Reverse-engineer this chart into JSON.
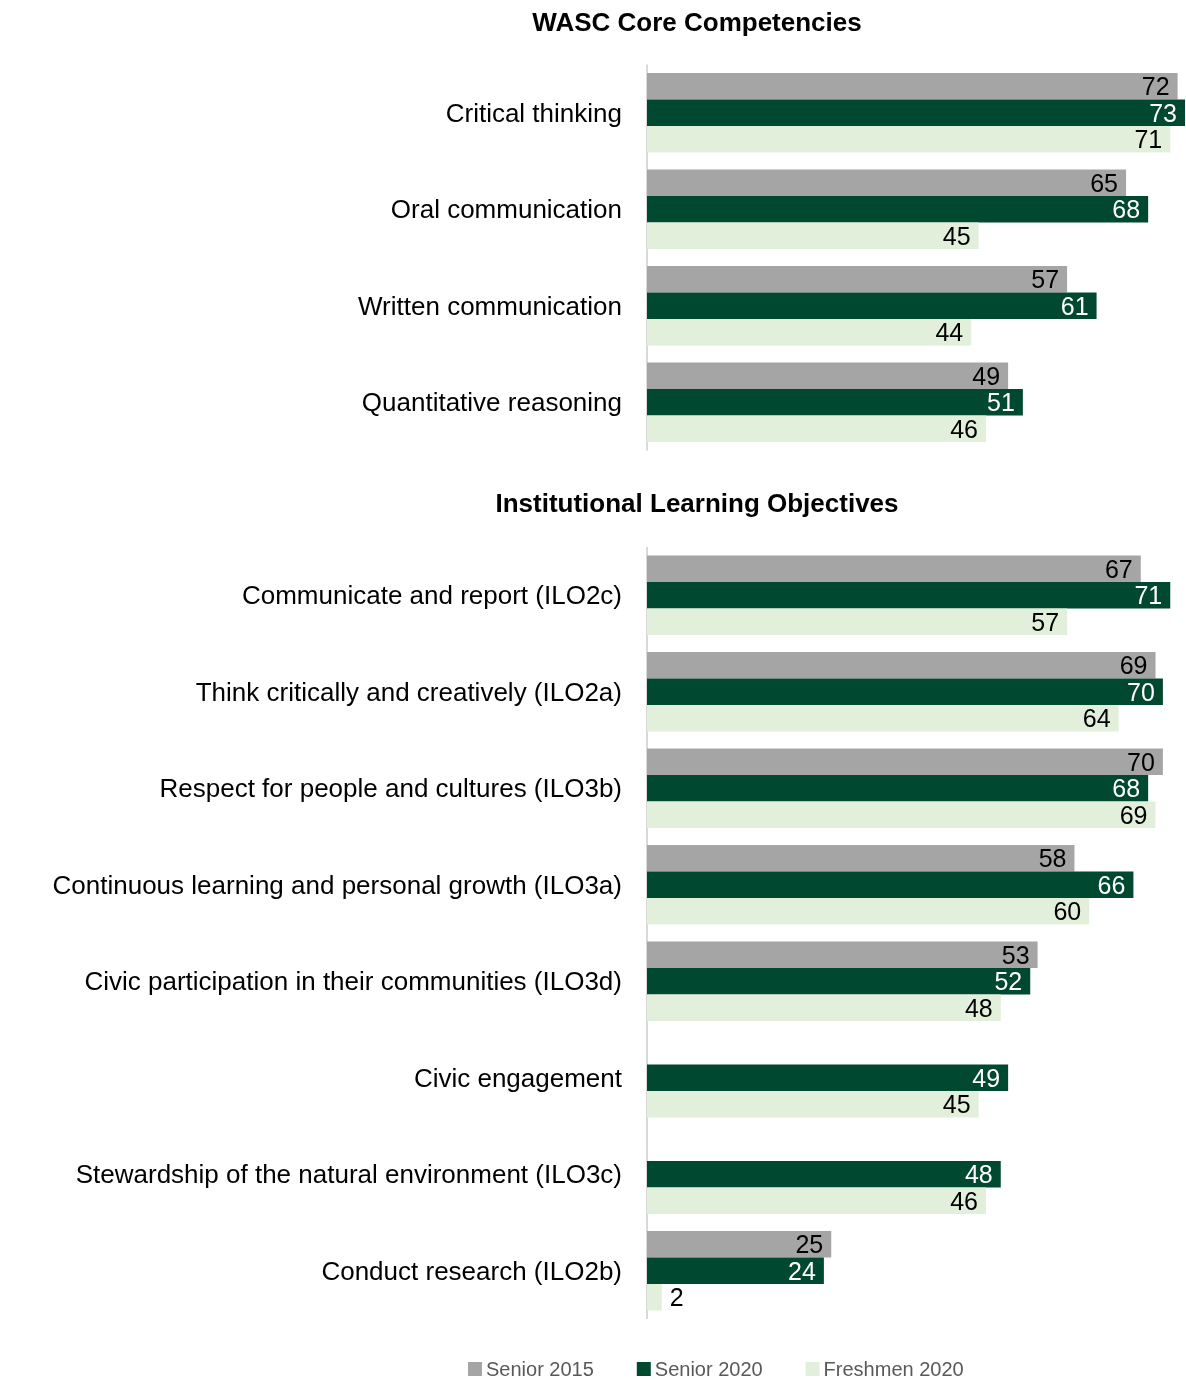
{
  "chart_data": [
    {
      "type": "bar",
      "orientation": "horizontal",
      "title": "WASC Core Competencies",
      "categories": [
        "Critical thinking",
        "Oral communication",
        "Written communication",
        "Quantitative reasoning"
      ],
      "series": [
        {
          "color": "#a5a5a5",
          "values": [
            72,
            65,
            57,
            49
          ]
        },
        {
          "color": "#00482f",
          "values": [
            73,
            68,
            61,
            51
          ]
        },
        {
          "color": "#e2efda",
          "values": [
            71,
            45,
            44,
            46
          ]
        }
      ],
      "data_labels": true,
      "legend": false
    },
    {
      "type": "bar",
      "orientation": "horizontal",
      "title": "Institutional Learning Objectives",
      "categories": [
        "Communicate and report (ILO2c)",
        "Think critically and creatively (ILO2a)",
        "Respect for people and cultures (ILO3b)",
        "Continuous learning and personal growth (ILO3a)",
        "Civic participation in their communities (ILO3d)",
        "Civic engagement",
        "Stewardship of the natural environment (ILO3c)",
        "Conduct research (ILO2b)"
      ],
      "series": [
        {
          "name": "Senior 2015",
          "color": "#a5a5a5",
          "values": [
            67,
            69,
            70,
            58,
            53,
            null,
            null,
            25
          ]
        },
        {
          "name": "Senior 2020",
          "color": "#00482f",
          "values": [
            71,
            70,
            68,
            66,
            52,
            49,
            48,
            24
          ]
        },
        {
          "name": "Freshmen 2020",
          "color": "#e2efda",
          "values": [
            57,
            64,
            69,
            60,
            48,
            45,
            46,
            2
          ]
        }
      ],
      "data_labels": true,
      "legend": "bottom"
    }
  ]
}
